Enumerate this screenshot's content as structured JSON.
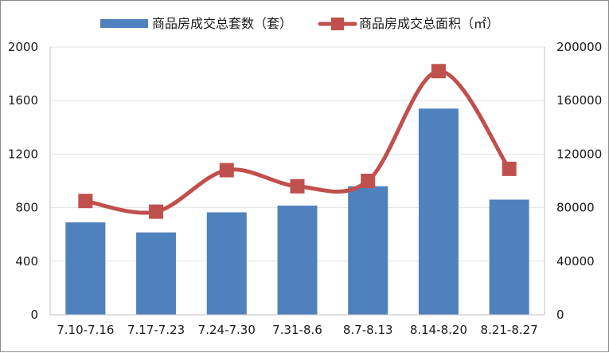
{
  "chart_data": {
    "type": "bar",
    "categories": [
      "7.10-7.16",
      "7.17-7.23",
      "7.24-7.30",
      "7.31-8.6",
      "8.7-8.13",
      "8.14-8.20",
      "8.21-8.27"
    ],
    "series": [
      {
        "name": "商品房成交总套数（套）",
        "type": "bar",
        "axis": "left",
        "color": "#4f81bd",
        "values": [
          690,
          615,
          765,
          815,
          960,
          1540,
          860
        ]
      },
      {
        "name": "商品房成交总面积（㎡）",
        "type": "line",
        "axis": "right",
        "color": "#c0504d",
        "smooth": true,
        "marker": "square",
        "values": [
          85000,
          77000,
          108000,
          96000,
          100000,
          182000,
          109000
        ]
      }
    ],
    "y_left": {
      "ylim": [
        0,
        2000
      ],
      "ticks": [
        "0",
        "400",
        "800",
        "1200",
        "1600",
        "2000"
      ]
    },
    "y_right": {
      "ylim": [
        0,
        200000
      ],
      "ticks": [
        "0",
        "40000",
        "80000",
        "120000",
        "160000",
        "200000"
      ]
    },
    "grid": true,
    "legend_position": "top"
  }
}
